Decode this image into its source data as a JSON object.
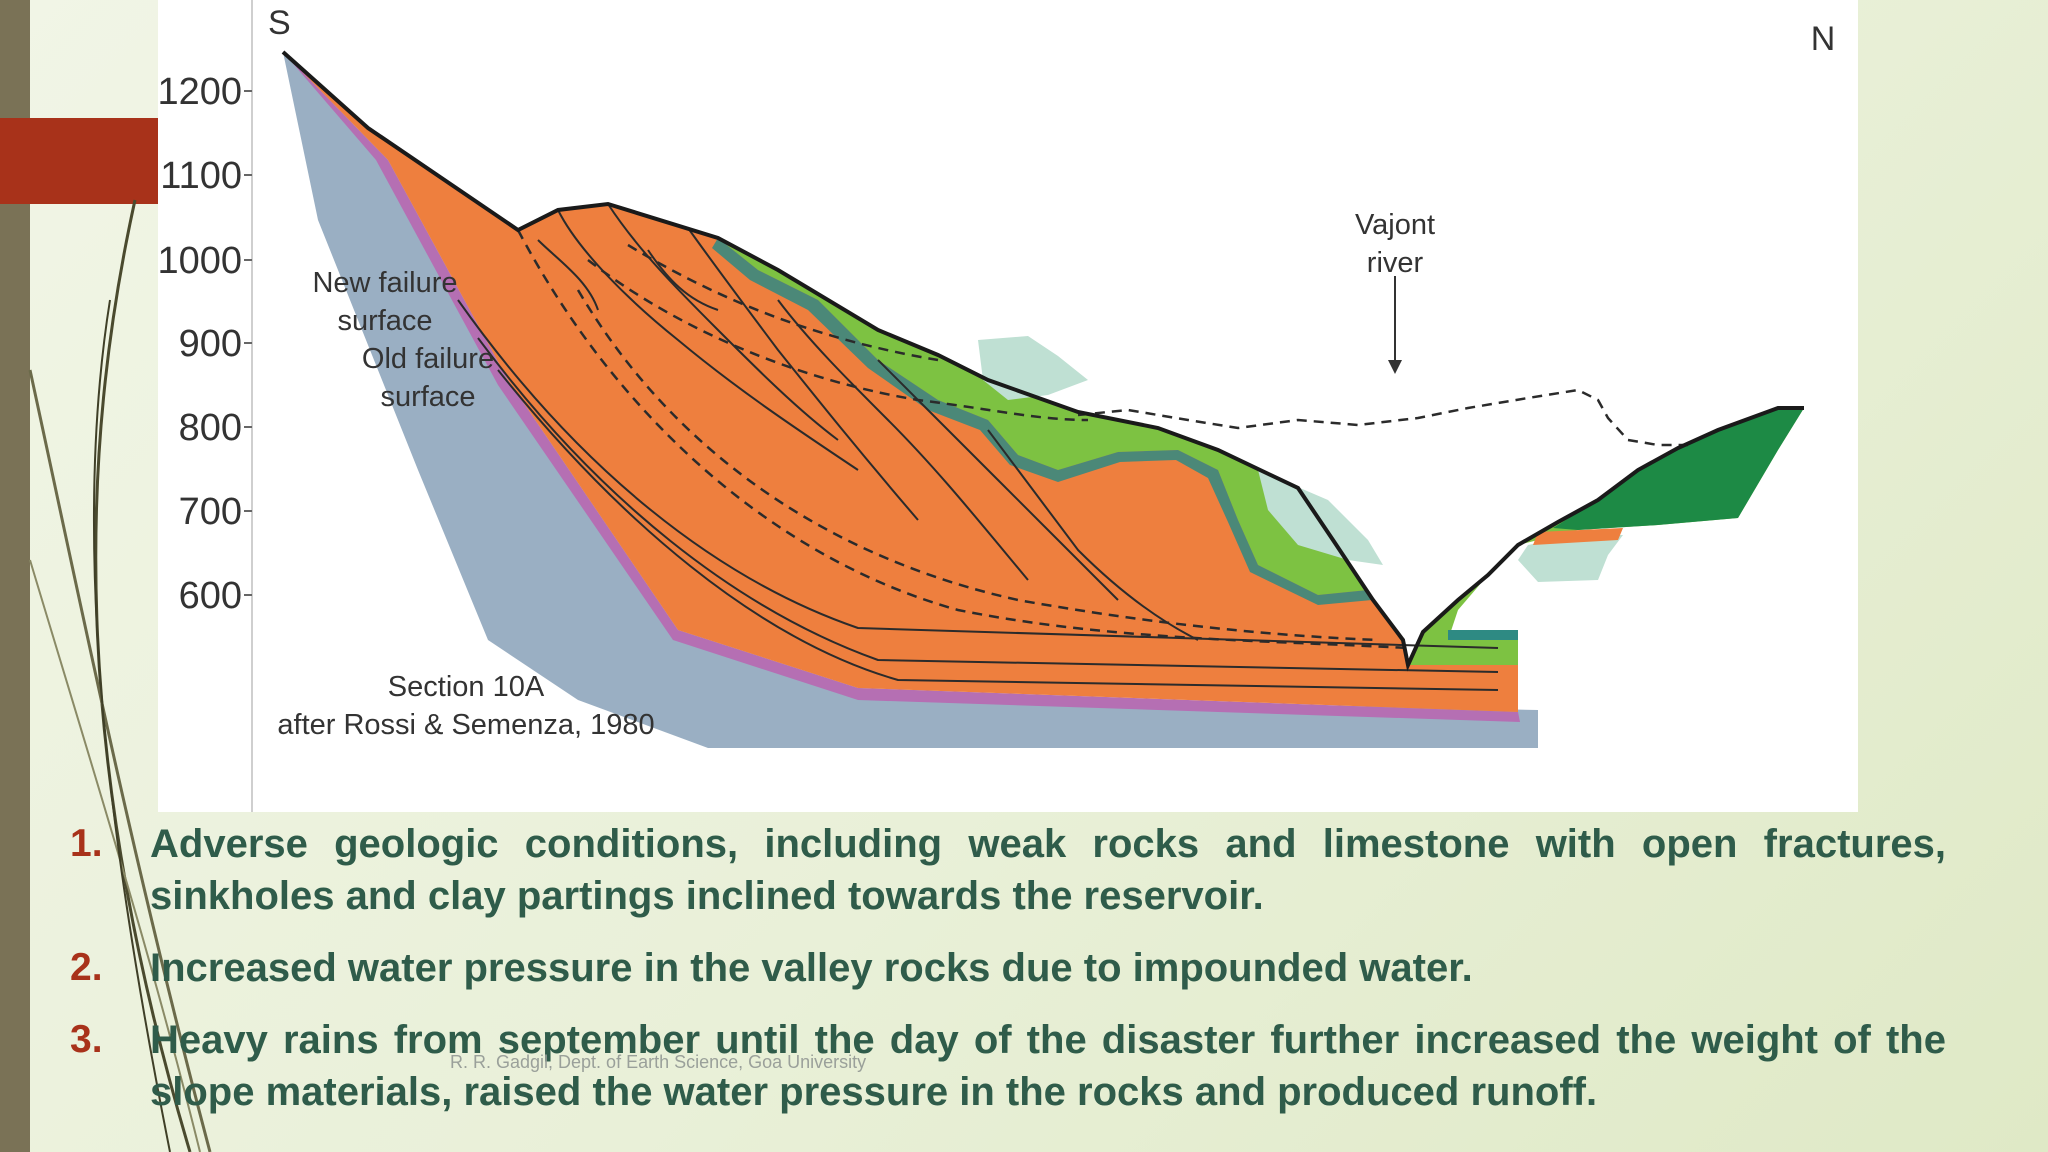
{
  "figure": {
    "direction_south": "S",
    "direction_north": "N",
    "elevation_ticks": [
      "1200",
      "1100",
      "1000",
      "900",
      "800",
      "700",
      "600"
    ],
    "label_new_failure": [
      "New failure",
      "surface"
    ],
    "label_old_failure": [
      "Old failure",
      "surface"
    ],
    "label_river": [
      "Vajont",
      "river"
    ],
    "section_caption": [
      "Section 10A",
      "after Rossi & Semenza, 1980"
    ],
    "colors": {
      "bedrock": "#9aafc3",
      "purple_layer": "#b56fb3",
      "orange_layer": "#ee7f3e",
      "green_layer": "#7dc242",
      "dark_green": "#1d8a45",
      "pale_layer": "#bfe0d3",
      "teal_band": "#2e8a83"
    }
  },
  "points": [
    {
      "num": "1.",
      "text": "Adverse geologic conditions, including weak rocks and limestone with open fractures, sinkholes and clay partings inclined towards the reservoir."
    },
    {
      "num": "2.",
      "text": "Increased water pressure in the valley rocks due to impounded water."
    },
    {
      "num": "3.",
      "text": "Heavy rains from september until the day of the disaster further increased the weight of the slope materials, raised the water pressure in the rocks and produced runoff."
    }
  ],
  "footer": "R. R. Gadgil, Dept. of Earth Science, Goa University",
  "theme": {
    "accent_red": "#a8321a",
    "text_green": "#2f5c4a",
    "stripe": "#7a7256"
  }
}
